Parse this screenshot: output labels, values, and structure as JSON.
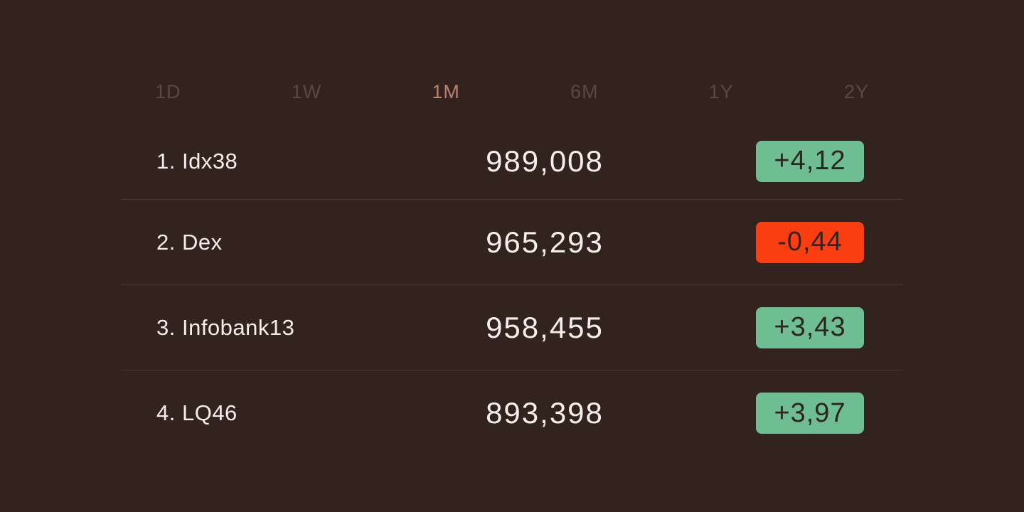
{
  "colors": {
    "bg": "#32231e",
    "text": "#f5efec",
    "divider": "#4a3630",
    "tab-inactive": "#5d4741",
    "tab-active": "#bd8175",
    "badge-up": "#6fbd92",
    "badge-down": "#fa3e11",
    "badge-text": "#2e2520"
  },
  "tabs": [
    {
      "label": "1D",
      "active": false
    },
    {
      "label": "1W",
      "active": false
    },
    {
      "label": "1M",
      "active": true
    },
    {
      "label": "6M",
      "active": false
    },
    {
      "label": "1Y",
      "active": false
    },
    {
      "label": "2Y",
      "active": false
    }
  ],
  "table": {
    "rows": [
      {
        "name": "1. Idx38",
        "value": "989,008",
        "change": "+4,12",
        "direction": "up"
      },
      {
        "name": "2. Dex",
        "value": "965,293",
        "change": "-0,44",
        "direction": "down"
      },
      {
        "name": "3. Infobank13",
        "value": "958,455",
        "change": "+3,43",
        "direction": "up"
      },
      {
        "name": "4. LQ46",
        "value": "893,398",
        "change": "+3,97",
        "direction": "up"
      }
    ]
  }
}
